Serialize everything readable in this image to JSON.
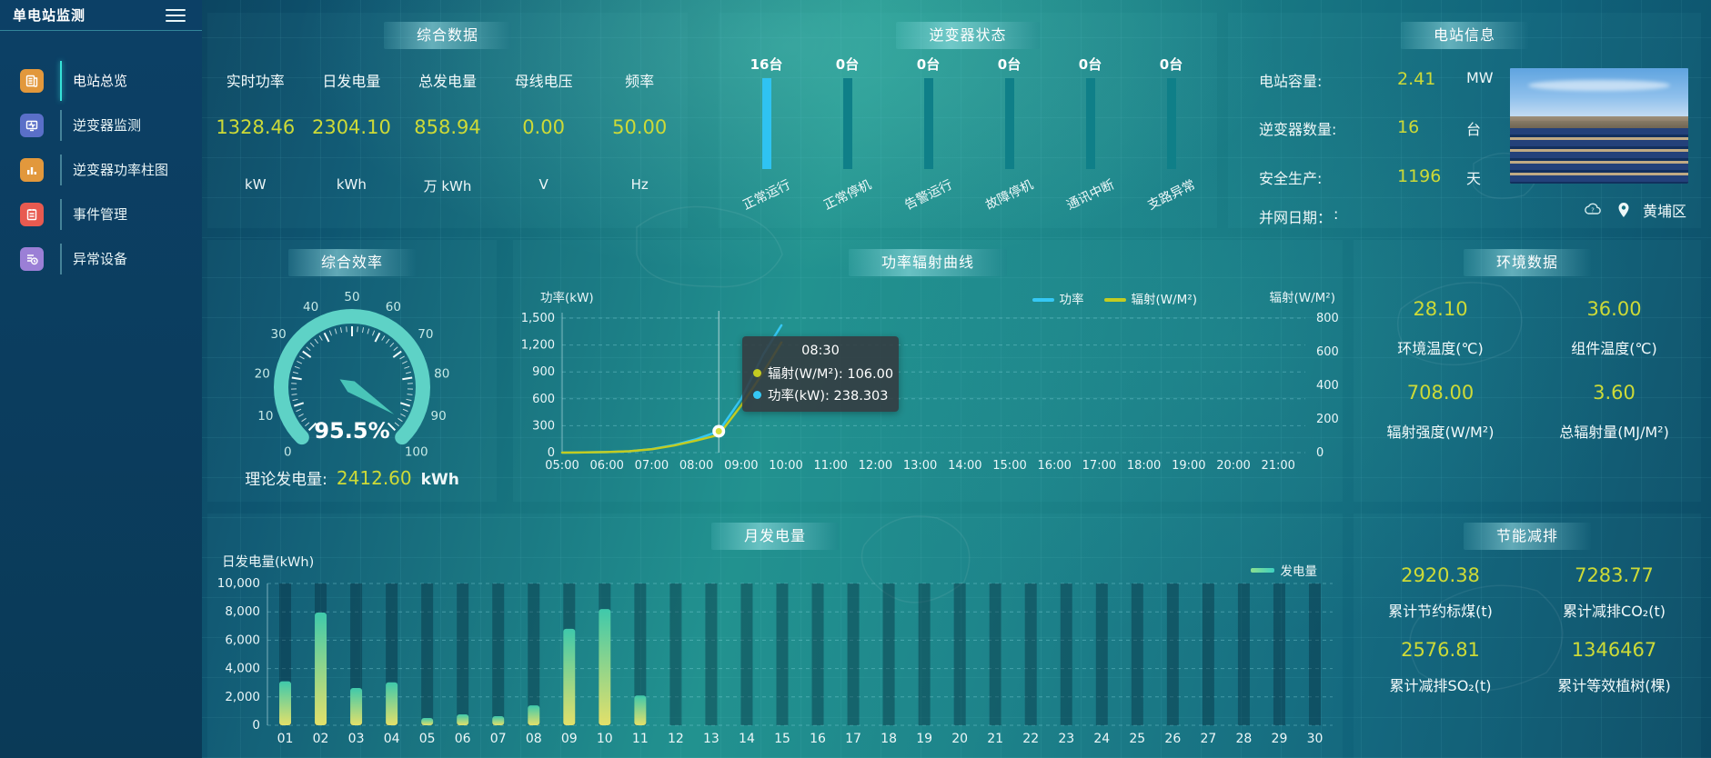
{
  "sidebar": {
    "title": "单电站监测",
    "items": [
      {
        "label": "电站总览",
        "color": "#e2983c",
        "active": true
      },
      {
        "label": "逆变器监测",
        "color": "#5a6fc8",
        "active": false
      },
      {
        "label": "逆变器功率柱图",
        "color": "#e2983c",
        "active": false
      },
      {
        "label": "事件管理",
        "color": "#e85a50",
        "active": false
      },
      {
        "label": "异常设备",
        "color": "#9b7fd6",
        "active": false
      }
    ]
  },
  "summary": {
    "title": "综合数据",
    "metrics": [
      {
        "label": "实时功率",
        "value": "1328.46",
        "unit": "kW"
      },
      {
        "label": "日发电量",
        "value": "2304.10",
        "unit": "kWh"
      },
      {
        "label": "总发电量",
        "value": "858.94",
        "unit": "万 kWh"
      },
      {
        "label": "母线电压",
        "value": "0.00",
        "unit": "V"
      },
      {
        "label": "频率",
        "value": "50.00",
        "unit": "Hz"
      }
    ]
  },
  "inverter_status": {
    "title": "逆变器状态"
  },
  "station_info": {
    "title": "电站信息",
    "rows": [
      {
        "label": "电站容量:",
        "value": "2.41",
        "unit": "MW"
      },
      {
        "label": "逆变器数量:",
        "value": "16",
        "unit": "台"
      },
      {
        "label": "安全生产:",
        "value": "1196",
        "unit": "天"
      },
      {
        "label": "并网日期：",
        "value": ":",
        "unit": ""
      }
    ],
    "location": "黄埔区"
  },
  "efficiency": {
    "title": "综合效率",
    "gauge_label": "95.5%",
    "theory_label": "理论发电量:",
    "theory_value": "2412.60",
    "theory_unit": "kWh"
  },
  "power_curve": {
    "title": "功率辐射曲线",
    "ylabel_left": "功率(kW)",
    "ylabel_right": "辐射(W/M²)",
    "legend": [
      {
        "name": "功率",
        "color": "#35c8f5"
      },
      {
        "name": "辐射(W/M²)",
        "color": "#c3cc21"
      }
    ],
    "tooltip": {
      "time": "08:30",
      "rows": [
        {
          "color": "#c3cc21",
          "text": "辐射(W/M²): 106.00"
        },
        {
          "color": "#35c8f5",
          "text": "功率(kW): 238.303"
        }
      ]
    }
  },
  "environment": {
    "title": "环境数据",
    "metrics": [
      {
        "value": "28.10",
        "label": "环境温度(℃)"
      },
      {
        "value": "36.00",
        "label": "组件温度(℃)"
      },
      {
        "value": "708.00",
        "label": "辐射强度(W/M²)"
      },
      {
        "value": "3.60",
        "label": "总辐射量(MJ/M²)"
      }
    ]
  },
  "monthly": {
    "title": "月发电量",
    "ylabel": "日发电量(kWh)",
    "legend": "发电量"
  },
  "saving": {
    "title": "节能减排",
    "metrics": [
      {
        "value": "2920.38",
        "label": "累计节约标煤(t)"
      },
      {
        "value": "7283.77",
        "label": "累计减排CO₂(t)"
      },
      {
        "value": "2576.81",
        "label": "累计减排SO₂(t)"
      },
      {
        "value": "1346467",
        "label": "累计等效植树(棵)"
      }
    ]
  },
  "chart_data": [
    {
      "id": "gauge",
      "type": "gauge",
      "title": "综合效率",
      "value": 95.5,
      "min": 0,
      "max": 100,
      "major_tick": 10,
      "color": "#5ed2c6",
      "label": "95.5%",
      "tick_labels": [
        0,
        10,
        20,
        30,
        40,
        50,
        60,
        70,
        80,
        90,
        100
      ]
    },
    {
      "id": "inverter",
      "type": "bar",
      "title": "逆变器状态",
      "categories": [
        "正常运行",
        "正常停机",
        "告警运行",
        "故障停机",
        "通讯中断",
        "支路异常"
      ],
      "values": [
        16,
        0,
        0,
        0,
        0,
        0
      ],
      "value_labels": [
        "16台",
        "0台",
        "0台",
        "0台",
        "0台",
        "0台"
      ],
      "max": 16,
      "bar_color": "#2fc3f2",
      "track_color": "#0f7f88"
    },
    {
      "id": "power_curve",
      "type": "line",
      "title": "功率辐射曲线",
      "x_hours": [
        5,
        5.5,
        6,
        6.5,
        7,
        7.5,
        8,
        8.5,
        9,
        9.5,
        9.9
      ],
      "x_axis_ticks": [
        "05:00",
        "06:00",
        "07:00",
        "08:00",
        "09:00",
        "10:00",
        "11:00",
        "12:00",
        "13:00",
        "14:00",
        "15:00",
        "16:00",
        "17:00",
        "18:00",
        "19:00",
        "20:00",
        "21:00"
      ],
      "x_range_hours": [
        5,
        21
      ],
      "series": [
        {
          "name": "功率",
          "axis": "left",
          "color": "#35c8f5",
          "values": [
            0,
            2,
            6,
            15,
            40,
            85,
            150,
            238.303,
            600,
            1100,
            1420
          ]
        },
        {
          "name": "辐射(W/M²)",
          "axis": "right",
          "color": "#c3cc21",
          "values": [
            0,
            1,
            3,
            8,
            20,
            42,
            72,
            106,
            280,
            480,
            655
          ]
        }
      ],
      "ylim_left": [
        0,
        1500
      ],
      "yticks_left": [
        "0",
        "300",
        "600",
        "900",
        "1,200",
        "1,500"
      ],
      "ylim_right": [
        0,
        800
      ],
      "yticks_right": [
        "0",
        "200",
        "400",
        "600",
        "800"
      ],
      "pointer": {
        "time": "08:30",
        "hours": 8.5,
        "power": 238.303,
        "radiation": 106
      },
      "grid": true,
      "legend_position": "top-right"
    },
    {
      "id": "monthly",
      "type": "bar",
      "title": "月发电量",
      "categories": [
        "01",
        "02",
        "03",
        "04",
        "05",
        "06",
        "07",
        "08",
        "09",
        "10",
        "11",
        "12",
        "13",
        "14",
        "15",
        "16",
        "17",
        "18",
        "19",
        "20",
        "21",
        "22",
        "23",
        "24",
        "25",
        "26",
        "27",
        "28",
        "29",
        "30"
      ],
      "values": [
        3100,
        7950,
        2630,
        3030,
        510,
        770,
        640,
        1400,
        6800,
        8200,
        2100,
        0,
        0,
        0,
        0,
        0,
        0,
        0,
        0,
        0,
        0,
        0,
        0,
        0,
        0,
        0,
        0,
        0,
        0,
        0
      ],
      "ylim": [
        0,
        10000
      ],
      "yticks": [
        "0",
        "2,000",
        "4,000",
        "6,000",
        "8,000",
        "10,000"
      ],
      "ylabel": "日发电量(kWh)",
      "legend": "发电量",
      "bar_gradient": [
        "#3fc9ab",
        "#e3e06a"
      ]
    }
  ]
}
